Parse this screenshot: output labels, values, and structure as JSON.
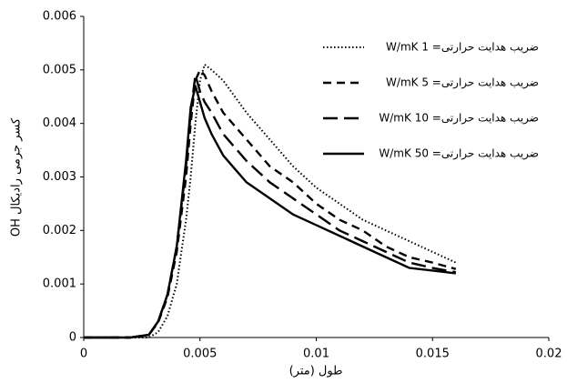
{
  "chart_data": {
    "type": "line",
    "x_label": "طول (متر)",
    "y_label": "کسر جرمی رادیکال OH",
    "xlim": [
      0,
      0.02
    ],
    "xticks": [
      0,
      0.005,
      0.01,
      0.015,
      0.02
    ],
    "ylim": [
      0,
      0.006
    ],
    "yticks": [
      0,
      0.001,
      0.002,
      0.003,
      0.004,
      0.005,
      0.006
    ],
    "grid": false,
    "legend": "upper right",
    "x": [
      0,
      0.002,
      0.0028,
      0.0032,
      0.0036,
      0.004,
      0.0044,
      0.0046,
      0.0048,
      0.005,
      0.0052,
      0.0055,
      0.006,
      0.007,
      0.008,
      0.009,
      0.01,
      0.011,
      0.012,
      0.013,
      0.014,
      0.015,
      0.016
    ],
    "series": [
      {
        "name": "ضریب هدایت حرارتی= 1 W/mK",
        "color": "#000000",
        "line_style": "dotted",
        "values": [
          0,
          0,
          0,
          0.0001,
          0.0004,
          0.001,
          0.0022,
          0.003,
          0.004,
          0.0048,
          0.0051,
          0.005,
          0.0048,
          0.0042,
          0.0037,
          0.0032,
          0.0028,
          0.0025,
          0.0022,
          0.002,
          0.0018,
          0.0016,
          0.0014
        ]
      },
      {
        "name": "ضریب هدایت حرارتی= 5 W/mK",
        "color": "#000000",
        "line_style": "dashed",
        "values": [
          0,
          0,
          5e-05,
          0.00028,
          0.00075,
          0.0016,
          0.003,
          0.004,
          0.0048,
          0.005,
          0.0049,
          0.0046,
          0.0042,
          0.0037,
          0.0032,
          0.0029,
          0.0025,
          0.0022,
          0.002,
          0.0017,
          0.0015,
          0.0014,
          0.00128
        ]
      },
      {
        "name": "ضریب هدایت حرارتی= 10 W/mK",
        "color": "#000000",
        "line_style": "long-dashed",
        "values": [
          0,
          0,
          5e-05,
          0.0003,
          0.0008,
          0.0017,
          0.0032,
          0.0042,
          0.0049,
          0.0046,
          0.0044,
          0.0042,
          0.0038,
          0.0033,
          0.0029,
          0.0026,
          0.0023,
          0.002,
          0.0018,
          0.0016,
          0.0014,
          0.0013,
          0.00122
        ]
      },
      {
        "name": "ضریب هدایت حرارتی= 50 W/mK",
        "color": "#000000",
        "line_style": "solid",
        "values": [
          0,
          0,
          5e-05,
          0.0003,
          0.0008,
          0.0017,
          0.0033,
          0.0043,
          0.0047,
          0.0044,
          0.0041,
          0.0038,
          0.0034,
          0.0029,
          0.0026,
          0.0023,
          0.0021,
          0.0019,
          0.0017,
          0.0015,
          0.0013,
          0.00125,
          0.0012
        ]
      }
    ]
  }
}
